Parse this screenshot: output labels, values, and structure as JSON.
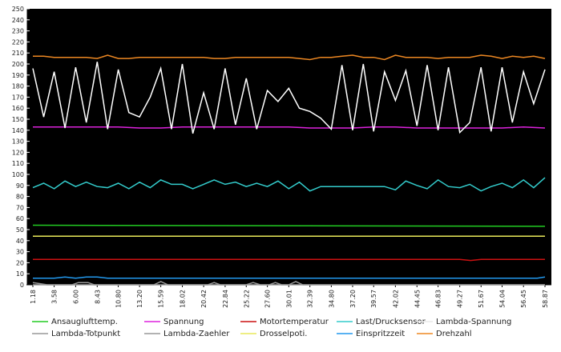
{
  "chart_data": {
    "type": "line",
    "title": "",
    "xlabel": "",
    "ylabel": "",
    "ylim": [
      0,
      250
    ],
    "ystep": 10,
    "grid": false,
    "background": "#000000",
    "axis_color": "#ffffff",
    "legend_placement": "bottom",
    "x_tick_labels": [
      "1.18",
      "3.58",
      "6.00",
      "8.43",
      "10.80",
      "13.20",
      "15.59",
      "18.02",
      "20.42",
      "22.84",
      "25.22",
      "27.60",
      "30.01",
      "32.39",
      "34.80",
      "37.20",
      "39.57",
      "42.02",
      "44.45",
      "46.83",
      "49.27",
      "51.67",
      "54.04",
      "56.45",
      "58.87"
    ],
    "x_range": [
      1.18,
      58.87
    ],
    "series": [
      {
        "name": "Ansauglufttemp.",
        "color": "#22cc22",
        "x": [
          1.18,
          58.87
        ],
        "values": [
          54,
          53
        ]
      },
      {
        "name": "Spannung",
        "color": "#dd22dd",
        "x": [
          1.18,
          3.58,
          6.0,
          8.43,
          10.8,
          13.2,
          15.59,
          18.02,
          20.42,
          22.84,
          25.22,
          27.6,
          30.01,
          32.39,
          34.8,
          37.2,
          39.57,
          42.02,
          44.45,
          46.83,
          49.27,
          51.67,
          54.04,
          56.45,
          58.87
        ],
        "values": [
          143,
          143,
          143,
          143,
          143,
          142,
          142,
          143,
          143,
          143,
          143,
          143,
          143,
          142,
          142,
          142,
          143,
          143,
          142,
          142,
          142,
          142,
          142,
          143,
          142
        ]
      },
      {
        "name": "Motortemperatur",
        "color": "#cc1111",
        "x": [
          1.18,
          47.5,
          49.27,
          50.5,
          51.67,
          58.87
        ],
        "values": [
          23,
          23,
          23,
          22,
          23,
          23
        ]
      },
      {
        "name": "Last/Drucksensor",
        "color": "#33cccc",
        "x": [
          1.18,
          2.4,
          3.58,
          4.8,
          6.0,
          7.2,
          8.43,
          9.6,
          10.8,
          12.0,
          13.2,
          14.4,
          15.59,
          16.8,
          18.02,
          19.2,
          20.42,
          21.6,
          22.84,
          24.0,
          25.22,
          26.4,
          27.6,
          28.8,
          30.01,
          31.2,
          32.39,
          33.6,
          34.8,
          36.0,
          37.2,
          38.4,
          39.57,
          40.8,
          42.02,
          43.2,
          44.45,
          45.6,
          46.83,
          48.0,
          49.27,
          50.4,
          51.67,
          52.8,
          54.04,
          55.2,
          56.45,
          57.6,
          58.87
        ],
        "values": [
          88,
          92,
          87,
          94,
          89,
          93,
          89,
          88,
          92,
          87,
          93,
          88,
          95,
          91,
          91,
          87,
          91,
          95,
          91,
          93,
          89,
          92,
          89,
          94,
          87,
          93,
          85,
          89,
          89,
          89,
          89,
          89,
          89,
          89,
          86,
          94,
          90,
          87,
          95,
          89,
          88,
          91,
          85,
          89,
          92,
          88,
          95,
          88,
          97
        ]
      },
      {
        "name": "Lambda-Spannung",
        "color": "#ffffff",
        "x": [
          1.18,
          2.4,
          3.58,
          4.8,
          6.0,
          7.2,
          8.43,
          9.6,
          10.8,
          12.0,
          13.2,
          14.4,
          15.59,
          16.8,
          18.02,
          19.2,
          20.42,
          21.6,
          22.84,
          24.0,
          25.22,
          26.4,
          27.6,
          28.8,
          30.01,
          31.2,
          32.39,
          33.6,
          34.8,
          36.0,
          37.2,
          38.4,
          39.57,
          40.8,
          42.02,
          43.2,
          44.45,
          45.6,
          46.83,
          48.0,
          49.27,
          50.4,
          51.67,
          52.8,
          54.04,
          55.2,
          56.45,
          57.6,
          58.87
        ],
        "values": [
          196,
          152,
          193,
          142,
          197,
          147,
          202,
          141,
          195,
          156,
          152,
          170,
          196,
          141,
          200,
          137,
          174,
          141,
          196,
          145,
          187,
          141,
          176,
          166,
          178,
          160,
          157,
          151,
          141,
          199,
          140,
          200,
          139,
          193,
          167,
          194,
          144,
          199,
          140,
          197,
          138,
          147,
          197,
          139,
          197,
          147,
          193,
          164,
          195
        ]
      },
      {
        "name": "Lambda-Totpunkt",
        "color": "#999999",
        "x": [
          1.18,
          2.0,
          2.8,
          58.87
        ],
        "values": [
          2,
          1,
          0,
          0
        ]
      },
      {
        "name": "Lambda-Zaehler",
        "color": "#999999",
        "x": [
          1.18,
          5.6,
          6.3,
          7.4,
          8.1,
          14.8,
          15.6,
          16.4,
          20.9,
          21.6,
          22.3,
          25.2,
          26.0,
          26.8,
          27.8,
          28.5,
          29.2,
          30.0,
          30.8,
          31.6,
          58.87
        ],
        "values": [
          0,
          0,
          2,
          2,
          0,
          0,
          3,
          0,
          0,
          2,
          0,
          0,
          2,
          0,
          0,
          2,
          0,
          0,
          3,
          0,
          0
        ]
      },
      {
        "name": "Drosselpoti.",
        "color": "#e8e85a",
        "x": [
          1.18,
          58.87
        ],
        "values": [
          44,
          44
        ]
      },
      {
        "name": "Einspritzzeit",
        "color": "#2299ee",
        "x": [
          1.18,
          3.58,
          4.8,
          6.0,
          7.2,
          8.43,
          9.6,
          58.0,
          58.87
        ],
        "values": [
          6,
          6,
          7,
          6,
          7,
          7,
          6,
          6,
          7
        ]
      },
      {
        "name": "Drehzahl",
        "color": "#ee8822",
        "x": [
          1.18,
          2.4,
          3.58,
          4.8,
          6.0,
          7.2,
          8.43,
          9.6,
          10.8,
          12.0,
          13.2,
          14.4,
          15.59,
          16.8,
          18.02,
          19.2,
          20.42,
          21.6,
          22.84,
          24.0,
          25.22,
          26.4,
          27.6,
          28.8,
          30.01,
          31.2,
          32.39,
          33.6,
          34.8,
          36.0,
          37.2,
          38.4,
          39.57,
          40.8,
          42.02,
          43.2,
          44.45,
          45.6,
          46.83,
          48.0,
          49.27,
          50.4,
          51.67,
          52.8,
          54.04,
          55.2,
          56.45,
          57.6,
          58.87
        ],
        "values": [
          207,
          207,
          206,
          206,
          206,
          206,
          205,
          208,
          205,
          205,
          206,
          206,
          206,
          206,
          206,
          206,
          206,
          205,
          205,
          206,
          206,
          206,
          206,
          206,
          206,
          205,
          204,
          206,
          206,
          207,
          208,
          206,
          206,
          204,
          208,
          206,
          206,
          206,
          205,
          206,
          206,
          206,
          208,
          207,
          205,
          207,
          206,
          207,
          205
        ]
      }
    ]
  }
}
